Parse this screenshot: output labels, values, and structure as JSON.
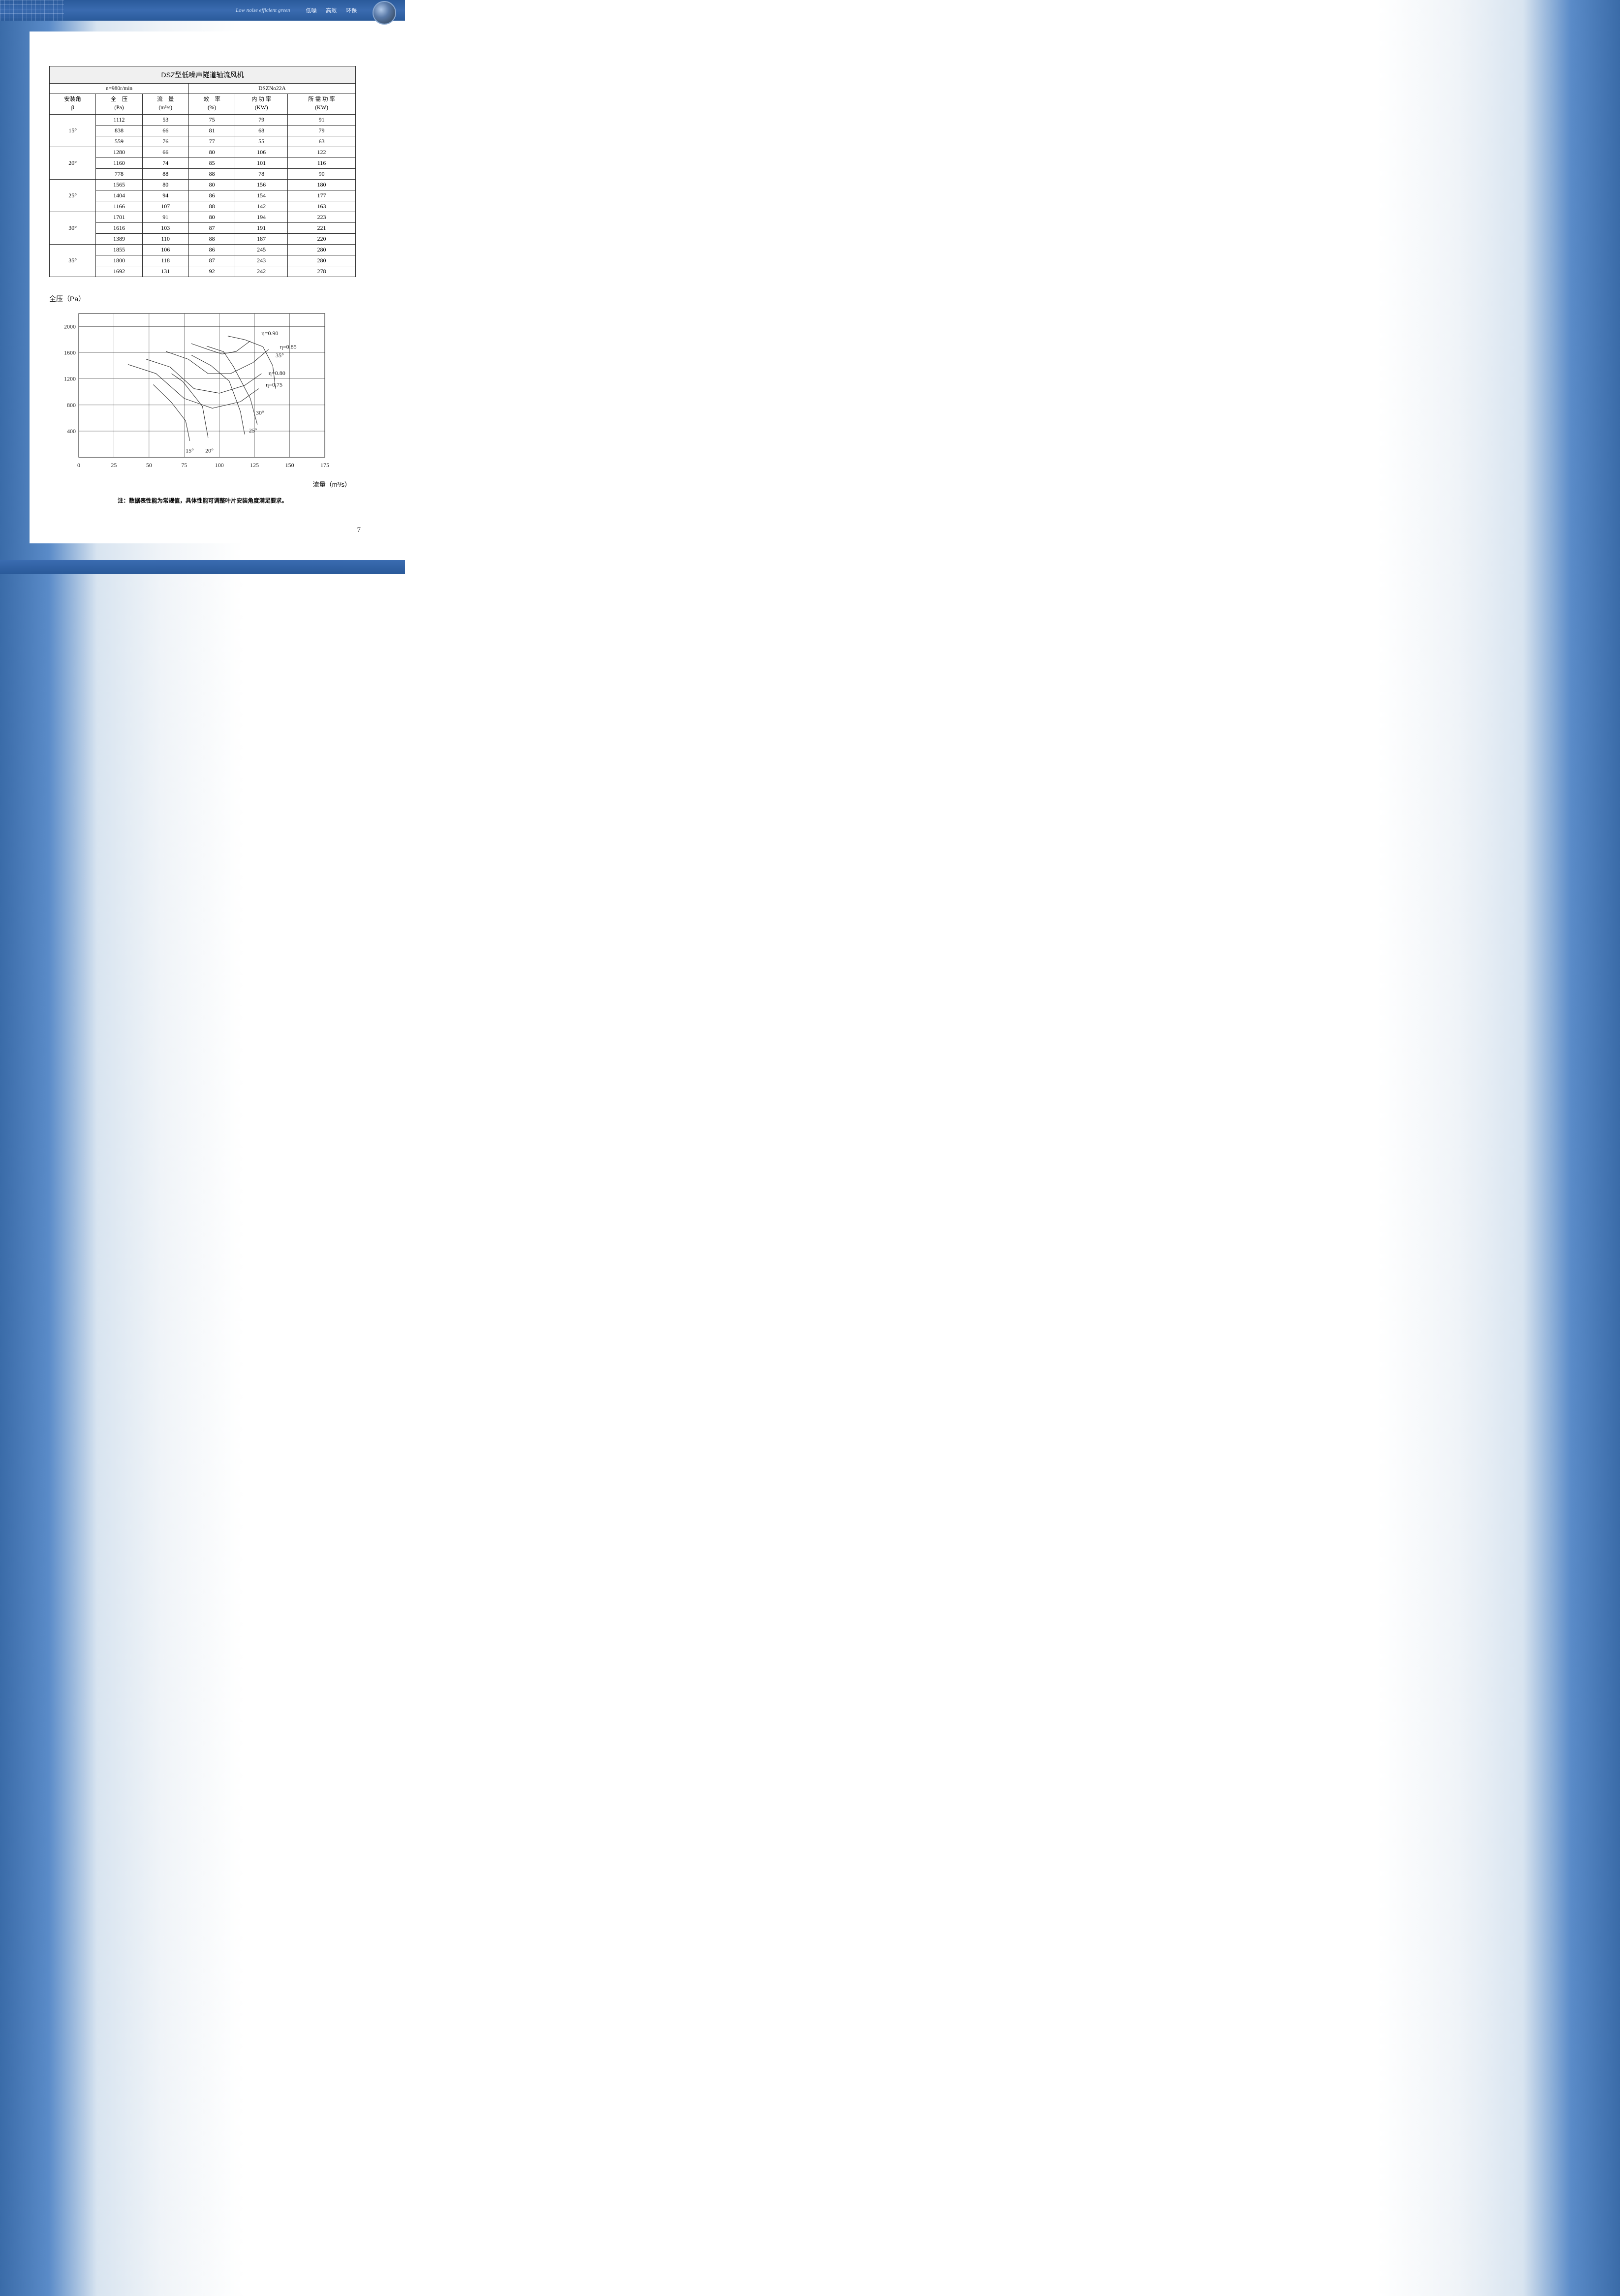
{
  "header": {
    "cursive": "Low noise efficient green",
    "cn": [
      "低噪",
      "高效",
      "环保"
    ]
  },
  "page_number": "7",
  "table": {
    "title": "DSZ型低噪声隧道轴流风机",
    "speed_label": "n=980r/min",
    "model_label": "DSZNo22A",
    "columns": [
      {
        "h1": "安装角",
        "h2": "β"
      },
      {
        "h1": "全　压",
        "h2": "(Pa)"
      },
      {
        "h1": "流　量",
        "h2": "(m³/s)"
      },
      {
        "h1": "效　率",
        "h2": "(%)"
      },
      {
        "h1": "内 功 率",
        "h2": "(KW)"
      },
      {
        "h1": "所 需 功 率",
        "h2": "(KW)"
      }
    ],
    "groups": [
      {
        "angle": "15°",
        "rows": [
          [
            "1112",
            "53",
            "75",
            "79",
            "91"
          ],
          [
            "838",
            "66",
            "81",
            "68",
            "79"
          ],
          [
            "559",
            "76",
            "77",
            "55",
            "63"
          ]
        ]
      },
      {
        "angle": "20°",
        "rows": [
          [
            "1280",
            "66",
            "80",
            "106",
            "122"
          ],
          [
            "1160",
            "74",
            "85",
            "101",
            "116"
          ],
          [
            "778",
            "88",
            "88",
            "78",
            "90"
          ]
        ]
      },
      {
        "angle": "25°",
        "rows": [
          [
            "1565",
            "80",
            "80",
            "156",
            "180"
          ],
          [
            "1404",
            "94",
            "86",
            "154",
            "177"
          ],
          [
            "1166",
            "107",
            "88",
            "142",
            "163"
          ]
        ]
      },
      {
        "angle": "30°",
        "rows": [
          [
            "1701",
            "91",
            "80",
            "194",
            "223"
          ],
          [
            "1616",
            "103",
            "87",
            "191",
            "221"
          ],
          [
            "1389",
            "110",
            "88",
            "187",
            "220"
          ]
        ]
      },
      {
        "angle": "35°",
        "rows": [
          [
            "1855",
            "106",
            "86",
            "245",
            "280"
          ],
          [
            "1800",
            "118",
            "87",
            "243",
            "280"
          ],
          [
            "1692",
            "131",
            "92",
            "242",
            "278"
          ]
        ]
      }
    ]
  },
  "chart": {
    "y_title": "全压（Pa）",
    "x_title": "流量（m³/s）",
    "xlim": [
      0,
      175
    ],
    "ylim": [
      0,
      2200
    ],
    "xticks": [
      0,
      25,
      50,
      75,
      100,
      125,
      150,
      175
    ],
    "yticks": [
      0,
      400,
      800,
      1200,
      1600,
      2000
    ],
    "grid_color": "#3a3a3a",
    "bg_color": "#ffffff",
    "line_color": "#2a2a2a",
    "line_width": 1,
    "curves": [
      {
        "label": "15°",
        "label_pos": [
          76,
          70
        ],
        "pts": [
          [
            53,
            1112
          ],
          [
            66,
            838
          ],
          [
            76,
            559
          ],
          [
            79,
            250
          ]
        ]
      },
      {
        "label": "20°",
        "label_pos": [
          90,
          70
        ],
        "pts": [
          [
            66,
            1280
          ],
          [
            74,
            1160
          ],
          [
            88,
            778
          ],
          [
            92,
            300
          ]
        ]
      },
      {
        "label": "25°",
        "label_pos": [
          121,
          380
        ],
        "pts": [
          [
            80,
            1565
          ],
          [
            94,
            1404
          ],
          [
            107,
            1166
          ],
          [
            115,
            700
          ],
          [
            118,
            350
          ]
        ]
      },
      {
        "label": "30°",
        "label_pos": [
          126,
          650
        ],
        "pts": [
          [
            91,
            1701
          ],
          [
            103,
            1616
          ],
          [
            110,
            1389
          ],
          [
            122,
            900
          ],
          [
            127,
            500
          ]
        ]
      },
      {
        "label": "35°",
        "label_pos": [
          140,
          1530
        ],
        "pts": [
          [
            106,
            1855
          ],
          [
            118,
            1800
          ],
          [
            131,
            1692
          ],
          [
            138,
            1400
          ],
          [
            140,
            1050
          ]
        ]
      }
    ],
    "eff_curves": [
      {
        "label": "η=0.75",
        "label_pos": [
          133,
          1080
        ],
        "pts": [
          [
            35,
            1420
          ],
          [
            55,
            1280
          ],
          [
            75,
            900
          ],
          [
            95,
            750
          ],
          [
            115,
            850
          ],
          [
            128,
            1050
          ]
        ]
      },
      {
        "label": "η=0.80",
        "label_pos": [
          135,
          1260
        ],
        "pts": [
          [
            48,
            1500
          ],
          [
            65,
            1380
          ],
          [
            82,
            1050
          ],
          [
            100,
            980
          ],
          [
            118,
            1100
          ],
          [
            130,
            1280
          ]
        ]
      },
      {
        "label": "η=0.85",
        "label_pos": [
          143,
          1660
        ],
        "pts": [
          [
            62,
            1620
          ],
          [
            78,
            1500
          ],
          [
            92,
            1280
          ],
          [
            108,
            1280
          ],
          [
            124,
            1450
          ],
          [
            135,
            1650
          ]
        ]
      },
      {
        "label": "η=0.90",
        "label_pos": [
          130,
          1870
        ],
        "pts": [
          [
            80,
            1740
          ],
          [
            92,
            1650
          ],
          [
            102,
            1580
          ],
          [
            112,
            1620
          ],
          [
            122,
            1780
          ]
        ]
      }
    ]
  },
  "footnote": "注：数据表性能为常规值，具体性能可调整叶片安装角度满足要求。"
}
